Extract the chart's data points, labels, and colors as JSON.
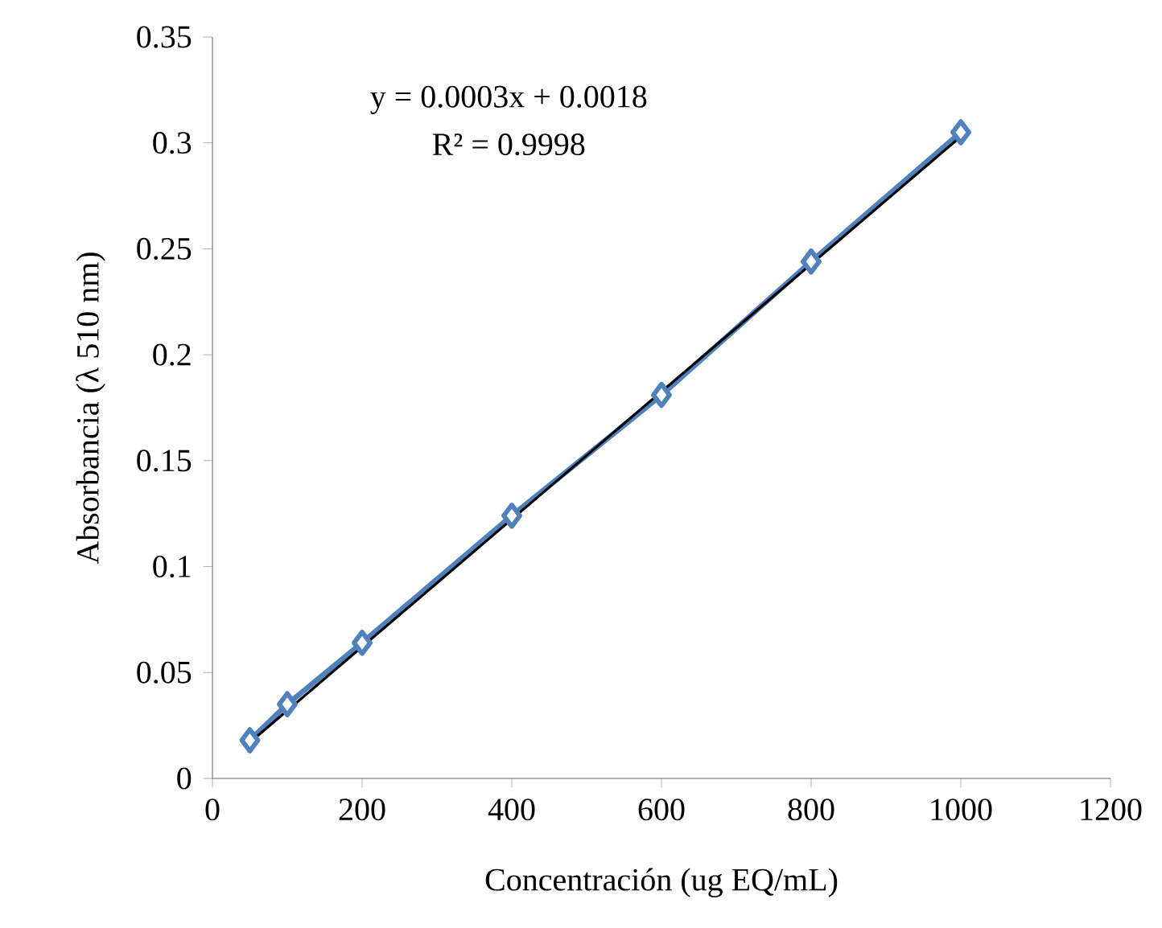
{
  "chart_data": {
    "type": "line",
    "xlabel": "Concentración (ug EQ/mL)",
    "ylabel": "Absorbancia  (λ 510 nm)",
    "annotations": [
      "y = 0.0003x + 0.0018",
      "R² = 0.9998"
    ],
    "xlim": [
      0,
      1200
    ],
    "xticks": [
      0,
      200,
      400,
      600,
      800,
      1000,
      1200
    ],
    "ylim": [
      0,
      0.35
    ],
    "yticks": [
      0,
      0.05,
      0.1,
      0.15,
      0.2,
      0.25,
      0.3,
      0.35
    ],
    "grid": false,
    "series": [
      {
        "color": "#4f81bd",
        "marker": "diamond",
        "line_style": "solid",
        "x": [
          50,
          100,
          200,
          400,
          600,
          800,
          1000
        ],
        "values": [
          0.018,
          0.035,
          0.064,
          0.124,
          0.181,
          0.244,
          0.305
        ]
      },
      {
        "color": "#000000",
        "marker": "none",
        "line_style": "solid",
        "x": [
          50,
          1000
        ],
        "values": [
          0.017,
          0.303
        ]
      }
    ]
  }
}
